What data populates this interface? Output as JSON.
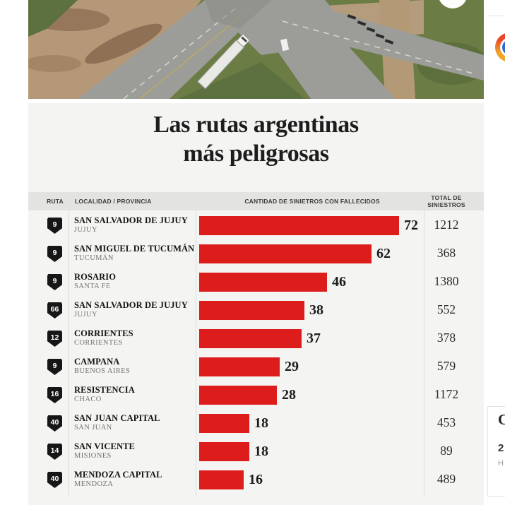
{
  "page": {
    "title_line1": "Las rutas argentinas",
    "title_line2": "más peligrosas"
  },
  "table": {
    "headers": {
      "ruta": "RUTA",
      "localidad": "LOCALIDAD / PROVINCIA",
      "cantidad": "CANTIDAD DE SINIETROS CON FALLECIDOS",
      "total_line1": "TOTAL DE",
      "total_line2": "SINIESTROS"
    },
    "rows": [
      {
        "ruta": "9",
        "localidad": "SAN SALVADOR DE JUJUY",
        "provincia": "JUJUY",
        "cantidad": 72,
        "total": "1212"
      },
      {
        "ruta": "9",
        "localidad": "SAN MIGUEL DE TUCUMÁN",
        "provincia": "TUCUMÁN",
        "cantidad": 62,
        "total": "368"
      },
      {
        "ruta": "9",
        "localidad": "ROSARIO",
        "provincia": "SANTA FE",
        "cantidad": 46,
        "total": "1380"
      },
      {
        "ruta": "66",
        "localidad": "SAN SALVADOR DE JUJUY",
        "provincia": "JUJUY",
        "cantidad": 38,
        "total": "552"
      },
      {
        "ruta": "12",
        "localidad": "CORRIENTES",
        "provincia": "CORRIENTES",
        "cantidad": 37,
        "total": "378"
      },
      {
        "ruta": "9",
        "localidad": "CAMPANA",
        "provincia": "BUENOS AIRES",
        "cantidad": 29,
        "total": "579"
      },
      {
        "ruta": "16",
        "localidad": "RESISTENCIA",
        "provincia": "CHACO",
        "cantidad": 28,
        "total": "1172"
      },
      {
        "ruta": "40",
        "localidad": "SAN JUAN CAPITAL",
        "provincia": "SAN JUAN",
        "cantidad": 18,
        "total": "453"
      },
      {
        "ruta": "14",
        "localidad": "SAN VICENTE",
        "provincia": "MISIONES",
        "cantidad": 18,
        "total": "89"
      },
      {
        "ruta": "40",
        "localidad": "MENDOZA CAPITAL",
        "provincia": "MENDOZA",
        "cantidad": 16,
        "total": "489"
      }
    ]
  },
  "side_panel": {
    "fragments": [
      "C",
      "2",
      "H"
    ]
  },
  "colors": {
    "bar_red": "#dd1c1c",
    "badge_black": "#161616",
    "panel_bg": "#f4f4f2",
    "header_band": "#e3e3e1"
  },
  "chart_data": {
    "type": "bar",
    "orientation": "horizontal",
    "title": "Las rutas argentinas más peligrosas",
    "categories": [
      "SAN SALVADOR DE JUJUY, JUJUY",
      "SAN MIGUEL DE TUCUMÁN, TUCUMÁN",
      "ROSARIO, SANTA FE",
      "SAN SALVADOR DE JUJUY, JUJUY",
      "CORRIENTES, CORRIENTES",
      "CAMPANA, BUENOS AIRES",
      "RESISTENCIA, CHACO",
      "SAN JUAN CAPITAL, SAN JUAN",
      "SAN VICENTE, MISIONES",
      "MENDOZA CAPITAL, MENDOZA"
    ],
    "routes": [
      9,
      9,
      9,
      66,
      12,
      9,
      16,
      40,
      14,
      40
    ],
    "series": [
      {
        "name": "CANTIDAD DE SINIETROS CON FALLECIDOS",
        "values": [
          72,
          62,
          46,
          38,
          37,
          29,
          28,
          18,
          18,
          16
        ]
      },
      {
        "name": "TOTAL DE SINIESTROS",
        "values": [
          1212,
          368,
          1380,
          552,
          378,
          579,
          1172,
          453,
          89,
          489
        ]
      }
    ],
    "xlim": [
      0,
      72
    ],
    "bar_color": "#dd1c1c",
    "legend_position": "none",
    "grid": false
  }
}
